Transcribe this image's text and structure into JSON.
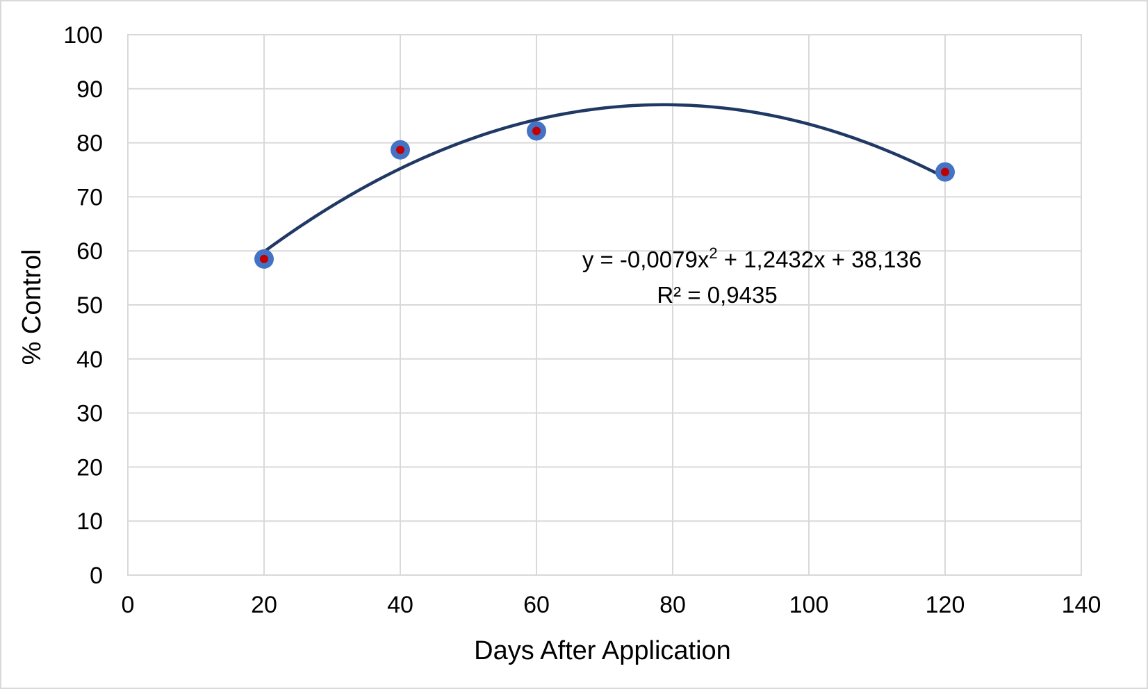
{
  "chart_data": {
    "type": "scatter",
    "title": "",
    "xlabel": "Days After Application",
    "ylabel": "% Control",
    "xlim": [
      0,
      140
    ],
    "ylim": [
      0,
      100
    ],
    "xticks": [
      0,
      20,
      40,
      60,
      80,
      100,
      120,
      140
    ],
    "yticks": [
      0,
      10,
      20,
      30,
      40,
      50,
      60,
      70,
      80,
      90,
      100
    ],
    "x_tick_labels": [
      "0",
      "20",
      "40",
      "60",
      "80",
      "100",
      "120",
      "140"
    ],
    "y_tick_labels": [
      "0",
      "10",
      "20",
      "30",
      "40",
      "50",
      "60",
      "70",
      "80",
      "90",
      "100"
    ],
    "grid": true,
    "legend": "none",
    "series": [
      {
        "x": [
          20,
          40,
          60,
          120
        ],
        "y": [
          58.5,
          78.7,
          82.2,
          74.6
        ],
        "marker_color": "#4472c4",
        "inner_color": "#c00000"
      }
    ],
    "trendline": {
      "type": "polynomial",
      "order": 2,
      "coefficients": {
        "a": -0.0079,
        "b": 1.2432,
        "c": 38.136
      },
      "x_range": [
        20,
        120
      ],
      "color": "#203864",
      "equation_line1_prefix": "y = -0,0079x",
      "equation_line1_sup": "2",
      "equation_line1_suffix": " + 1,2432x + 38,136",
      "r_squared_label": "R² = 0,9435"
    },
    "colors": {
      "grid": "#d9d9d9",
      "border": "#d9d9d9"
    }
  }
}
